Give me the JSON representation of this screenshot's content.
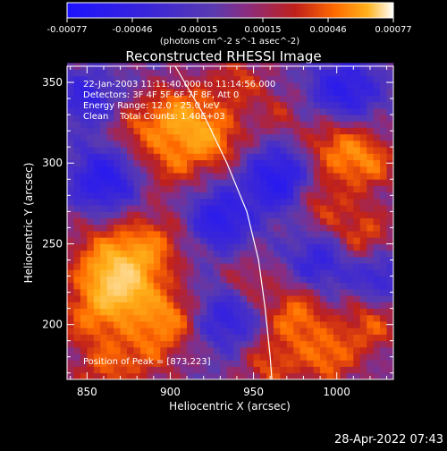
{
  "chart_data": {
    "type": "heatmap",
    "title": "Reconstructed RHESSI Image",
    "xlabel": "Heliocentric X (arcsec)",
    "ylabel": "Heliocentric Y (arcsec)",
    "xlim": [
      838,
      1034
    ],
    "ylim": [
      166,
      360
    ],
    "xticks": [
      850,
      900,
      950,
      1000
    ],
    "yticks": [
      200,
      250,
      300,
      350
    ],
    "colorbar": {
      "min": -0.00077,
      "max": 0.00077,
      "ticks": [
        "-0.00077",
        "-0.00046",
        "-0.00015",
        "0.00015",
        "0.00046",
        "0.00077"
      ],
      "unit_label": "(photons cm^-2 s^-1 asec^-2)",
      "colors": [
        "#1d12ff",
        "#3a26d8",
        "#5a3ab0",
        "#8a2c80",
        "#c0201a",
        "#ff6a00",
        "#ffb11a",
        "#ffffff"
      ]
    },
    "annotations": [
      "22-Jan-2003 11:11:40.000 to 11:14:56.000",
      "Detectors: 3F 4F 5F 6F 7F 8F, Att 0",
      "Energy Range: 12.0 - 25.0 keV",
      "Clean    Total Counts: 1.40E+03"
    ],
    "peak_label": "Position of Peak = [873,223]",
    "peak": [
      873,
      223
    ],
    "limb_curve": [
      [
        903,
        360
      ],
      [
        920,
        330
      ],
      [
        934,
        300
      ],
      [
        946,
        270
      ],
      [
        953,
        240
      ],
      [
        957,
        210
      ],
      [
        960,
        180
      ],
      [
        961,
        166
      ]
    ],
    "hotspots": [
      {
        "x": 873,
        "y": 223,
        "amp": 1.0,
        "r": 14
      },
      {
        "x": 862,
        "y": 240,
        "amp": 0.7,
        "r": 16
      },
      {
        "x": 890,
        "y": 250,
        "amp": 0.55,
        "r": 14
      },
      {
        "x": 852,
        "y": 205,
        "amp": 0.55,
        "r": 14
      },
      {
        "x": 900,
        "y": 205,
        "amp": 0.65,
        "r": 12
      },
      {
        "x": 885,
        "y": 185,
        "amp": 0.5,
        "r": 14
      },
      {
        "x": 860,
        "y": 172,
        "amp": 0.45,
        "r": 12
      },
      {
        "x": 905,
        "y": 330,
        "amp": 0.8,
        "r": 13
      },
      {
        "x": 925,
        "y": 315,
        "amp": 0.75,
        "r": 13
      },
      {
        "x": 900,
        "y": 300,
        "amp": 0.5,
        "r": 12
      },
      {
        "x": 880,
        "y": 320,
        "amp": 0.45,
        "r": 12
      },
      {
        "x": 1000,
        "y": 310,
        "amp": 0.65,
        "r": 14
      },
      {
        "x": 1020,
        "y": 300,
        "amp": 0.55,
        "r": 12
      },
      {
        "x": 990,
        "y": 275,
        "amp": 0.45,
        "r": 12
      },
      {
        "x": 1015,
        "y": 255,
        "amp": 0.55,
        "r": 13
      },
      {
        "x": 975,
        "y": 205,
        "amp": 0.7,
        "r": 13
      },
      {
        "x": 995,
        "y": 180,
        "amp": 0.65,
        "r": 12
      },
      {
        "x": 1020,
        "y": 200,
        "amp": 0.55,
        "r": 12
      },
      {
        "x": 960,
        "y": 175,
        "amp": 0.5,
        "r": 12
      },
      {
        "x": 945,
        "y": 225,
        "amp": 0.4,
        "r": 11
      },
      {
        "x": 940,
        "y": 350,
        "amp": 0.45,
        "r": 12
      },
      {
        "x": 965,
        "y": 330,
        "amp": 0.3,
        "r": 10
      }
    ],
    "coldspots": [
      {
        "x": 860,
        "y": 290,
        "amp": 0.85,
        "r": 14
      },
      {
        "x": 965,
        "y": 290,
        "amp": 0.9,
        "r": 14
      },
      {
        "x": 1005,
        "y": 345,
        "amp": 0.8,
        "r": 14
      },
      {
        "x": 930,
        "y": 265,
        "amp": 0.8,
        "r": 13
      },
      {
        "x": 935,
        "y": 205,
        "amp": 0.65,
        "r": 14
      },
      {
        "x": 990,
        "y": 240,
        "amp": 0.6,
        "r": 13
      },
      {
        "x": 850,
        "y": 340,
        "amp": 0.6,
        "r": 12
      },
      {
        "x": 1025,
        "y": 230,
        "amp": 0.55,
        "r": 12
      }
    ]
  },
  "footer": {
    "timestamp": "28-Apr-2022 07:43"
  }
}
